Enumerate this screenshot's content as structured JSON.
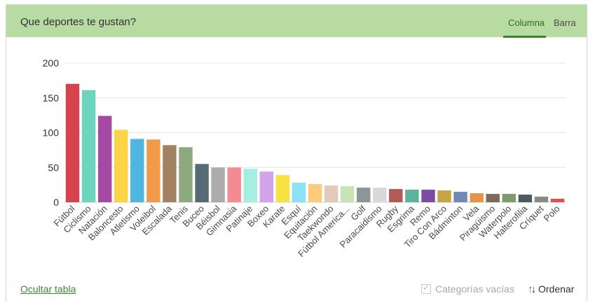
{
  "header": {
    "title": "Que deportes te gustan?",
    "tabs": [
      {
        "label": "Columna",
        "active": true
      },
      {
        "label": "Barra",
        "active": false
      }
    ]
  },
  "footer": {
    "hide_table_label": "Ocultar tabla",
    "empty_categories_label": "Categorías vacías",
    "sort_label": "Ordenar"
  },
  "chart_data": {
    "type": "bar",
    "ylim": [
      0,
      200
    ],
    "yticks": [
      0,
      50,
      100,
      150,
      200
    ],
    "grid": true,
    "categories": [
      "Fútbol",
      "Ciclismo",
      "Natación",
      "Baloncesto",
      "Atletismo",
      "Voleibol",
      "Escalada",
      "Tenis",
      "Buceo",
      "Béisbol",
      "Gimnasia",
      "Patinaje",
      "Boxeo",
      "Karate",
      "Esquí",
      "Equitación",
      "Taekwondo",
      "Fútbol America...",
      "Golf",
      "Paracaidismo",
      "Rugby",
      "Esgrima",
      "Remo",
      "Tiro Con Arco",
      "Bádminton",
      "Vela",
      "Piragüismo",
      "Waterpolo",
      "Halterofilia",
      "Críquet",
      "Polo"
    ],
    "values": [
      170,
      161,
      124,
      104,
      91,
      90,
      82,
      79,
      55,
      50,
      50,
      48,
      44,
      39,
      28,
      26,
      24,
      23,
      21,
      21,
      19,
      18,
      18,
      17,
      15,
      13,
      12,
      12,
      11,
      8,
      5
    ],
    "colors": [
      "#d7434d",
      "#6fd4bd",
      "#a44aa5",
      "#fbd447",
      "#4fb6e3",
      "#f19a4a",
      "#a38163",
      "#8daa7e",
      "#566b74",
      "#acacac",
      "#f48b94",
      "#a6efe0",
      "#d2a3e8",
      "#f7e241",
      "#8be1f5",
      "#fdcb7b",
      "#e2cbb8",
      "#c7e4b6",
      "#8d9597",
      "#d8d8d8",
      "#b35a57",
      "#5cb29b",
      "#7d4da4",
      "#c9a445",
      "#6f89b3",
      "#e49348",
      "#7d6a5c",
      "#7d9c6a",
      "#4d5a61",
      "#8a8a8a",
      "#e54e4e"
    ]
  }
}
